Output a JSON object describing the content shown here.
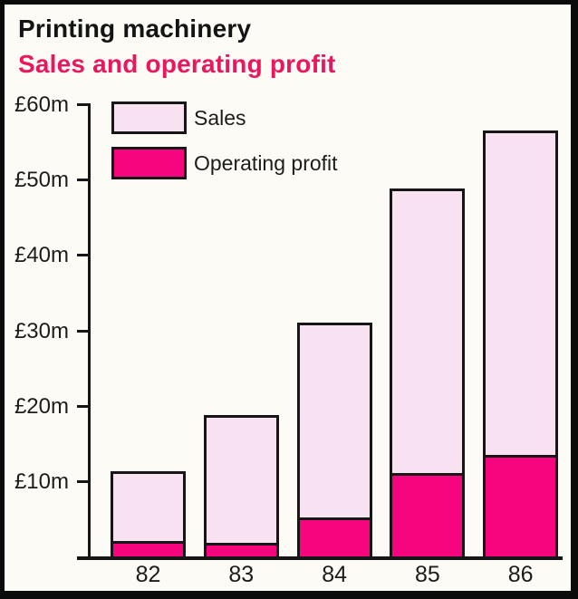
{
  "header": {
    "title": "Printing machinery",
    "subtitle": "Sales and operating profit"
  },
  "legend": {
    "items": [
      {
        "label": "Sales",
        "swatch": "sales"
      },
      {
        "label": "Operating profit",
        "swatch": "profit"
      }
    ]
  },
  "colors": {
    "sales": "#f8e2f2",
    "profit": "#f6057f",
    "subtitle": "#e8185f",
    "axis": "#161616",
    "frame": "#0b0b0b",
    "paper": "#fcfbf5"
  },
  "chart_data": {
    "type": "bar",
    "title": "Printing machinery",
    "subtitle": "Sales and operating profit",
    "categories": [
      "82",
      "83",
      "84",
      "85",
      "86"
    ],
    "series": [
      {
        "name": "Sales",
        "values": [
          11.3,
          18.7,
          31.0,
          48.8,
          56.5
        ]
      },
      {
        "name": "Operating profit",
        "values": [
          2.0,
          1.8,
          5.2,
          11.1,
          13.5
        ]
      }
    ],
    "unit": "£m",
    "ylim": [
      0,
      60
    ],
    "yticks": [
      {
        "value": 60,
        "label": "£60m"
      },
      {
        "value": 50,
        "label": "£50m"
      },
      {
        "value": 40,
        "label": "£40m"
      },
      {
        "value": 30,
        "label": "£30m"
      },
      {
        "value": 20,
        "label": "£20m"
      },
      {
        "value": 10,
        "label": "£10m"
      }
    ],
    "grid": false,
    "legend_position": "top-left",
    "bar_style": "overlaid (profit drawn over base of sales bar)"
  }
}
